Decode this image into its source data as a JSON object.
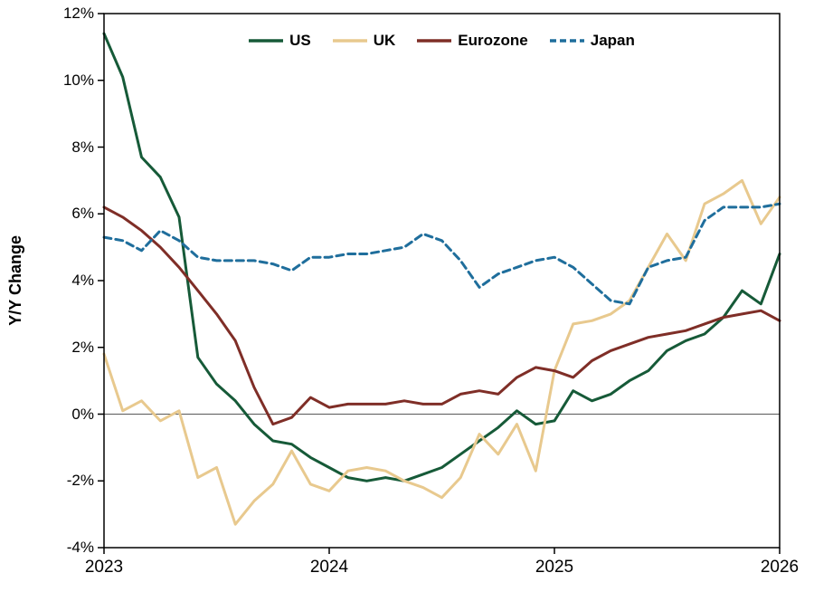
{
  "chart_data": {
    "type": "line",
    "title": "",
    "ylabel": "Y/Y Change",
    "ylim": [
      -4,
      12
    ],
    "yticks": [
      {
        "value": 12,
        "label": "12%"
      },
      {
        "value": 10,
        "label": "10%"
      },
      {
        "value": 8,
        "label": "8%"
      },
      {
        "value": 6,
        "label": "6%"
      },
      {
        "value": 4,
        "label": "4%"
      },
      {
        "value": 2,
        "label": "2%"
      },
      {
        "value": 0,
        "label": "0%"
      },
      {
        "value": -2,
        "label": "-2%"
      },
      {
        "value": -4,
        "label": "-4%"
      }
    ],
    "xlim": [
      2023,
      2026
    ],
    "xticks": [
      {
        "value": 2023,
        "label": "2023"
      },
      {
        "value": 2024,
        "label": "2024"
      },
      {
        "value": 2025,
        "label": "2025"
      },
      {
        "value": 2026,
        "label": "2026"
      }
    ],
    "x_start_year": 2023,
    "x_frequency": "monthly",
    "points_per_year": 12,
    "zero_line": true,
    "grid": false,
    "legend_position": "top-center",
    "axis_color": "#000000",
    "zero_line_color": "#595959",
    "series": [
      {
        "name": "US",
        "color": "#165a38",
        "style": "solid",
        "values": [
          11.4,
          10.1,
          7.7,
          7.1,
          5.9,
          1.7,
          0.9,
          0.4,
          -0.3,
          -0.8,
          -0.9,
          -1.3,
          -1.6,
          -1.9,
          -2.0,
          -1.9,
          -2.0,
          -1.8,
          -1.6,
          -1.2,
          -0.8,
          -0.4,
          0.1,
          -0.3,
          -0.2,
          0.7,
          0.4,
          0.6,
          1.0,
          1.3,
          1.9,
          2.2,
          2.4,
          2.9,
          3.7,
          3.3,
          4.8
        ]
      },
      {
        "name": "UK",
        "color": "#e8c98e",
        "style": "solid",
        "values": [
          1.8,
          0.1,
          0.4,
          -0.2,
          0.1,
          -1.9,
          -1.6,
          -3.3,
          -2.6,
          -2.1,
          -1.1,
          -2.1,
          -2.3,
          -1.7,
          -1.6,
          -1.7,
          -2.0,
          -2.2,
          -2.5,
          -1.9,
          -0.6,
          -1.2,
          -0.3,
          -1.7,
          1.3,
          2.7,
          2.8,
          3.0,
          3.4,
          4.4,
          5.4,
          4.6,
          6.3,
          6.6,
          7.0,
          5.7,
          6.5
        ]
      },
      {
        "name": "Eurozone",
        "color": "#7f2e27",
        "style": "solid",
        "values": [
          6.2,
          5.9,
          5.5,
          5.0,
          4.4,
          3.7,
          3.0,
          2.2,
          0.8,
          -0.3,
          -0.1,
          0.5,
          0.2,
          0.3,
          0.3,
          0.3,
          0.4,
          0.3,
          0.3,
          0.6,
          0.7,
          0.6,
          1.1,
          1.4,
          1.3,
          1.1,
          1.6,
          1.9,
          2.1,
          2.3,
          2.4,
          2.5,
          2.7,
          2.9,
          3.0,
          3.1,
          2.8
        ]
      },
      {
        "name": "Japan",
        "color": "#1f6e9c",
        "style": "dashed",
        "values": [
          5.3,
          5.2,
          4.9,
          5.5,
          5.2,
          4.7,
          4.6,
          4.6,
          4.6,
          4.5,
          4.3,
          4.7,
          4.7,
          4.8,
          4.8,
          4.9,
          5.0,
          5.4,
          5.2,
          4.6,
          3.8,
          4.2,
          4.4,
          4.6,
          4.7,
          4.4,
          3.9,
          3.4,
          3.3,
          4.4,
          4.6,
          4.7,
          5.8,
          6.2,
          6.2,
          6.2,
          6.3
        ]
      }
    ]
  }
}
